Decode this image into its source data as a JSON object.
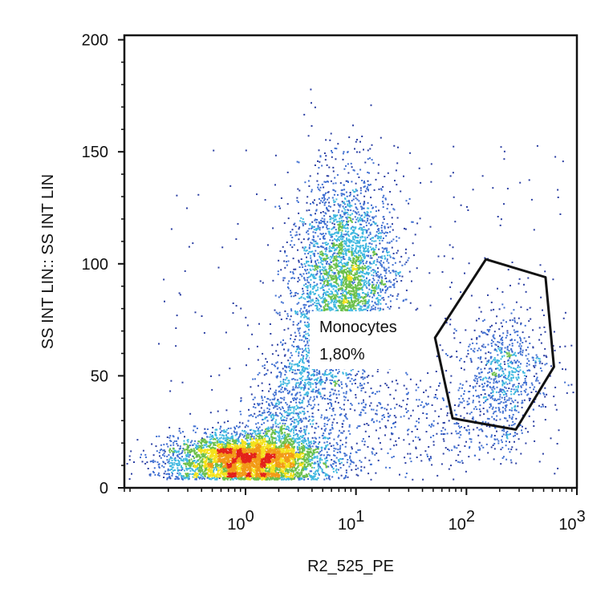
{
  "chart_data": {
    "type": "scatter",
    "title": "",
    "xlabel": "R2_525_PE",
    "ylabel": "SS INT LIN:: SS INT LIN",
    "x_scale": "log",
    "xlim": [
      0.08,
      1000
    ],
    "ylim": [
      0,
      202
    ],
    "x_ticks": [
      {
        "value": 1,
        "base": "10",
        "exp": "0"
      },
      {
        "value": 10,
        "base": "10",
        "exp": "1"
      },
      {
        "value": 100,
        "base": "10",
        "exp": "2"
      },
      {
        "value": 1000,
        "base": "10",
        "exp": "3"
      }
    ],
    "y_ticks": [
      {
        "value": 0,
        "label": "0"
      },
      {
        "value": 50,
        "label": "50"
      },
      {
        "value": 100,
        "label": "100"
      },
      {
        "value": 150,
        "label": "150"
      },
      {
        "value": 200,
        "label": "200"
      }
    ],
    "grid": false,
    "colormap": [
      "#2b3fa3",
      "#3f6fd1",
      "#3fb8e0",
      "#6cc04a",
      "#f4e21b",
      "#f29b17",
      "#e3221b"
    ],
    "populations": [
      {
        "center_x": 1.05,
        "center_y": 13,
        "spread_log10x": 0.35,
        "spread_y": 6,
        "count": 4500
      },
      {
        "center_x": 8.0,
        "center_y": 95,
        "spread_log10x": 0.23,
        "spread_y": 22,
        "count": 3200
      },
      {
        "center_x": 220,
        "center_y": 52,
        "spread_log10x": 0.2,
        "spread_y": 14,
        "count": 700
      }
    ],
    "gate": {
      "name": "Monocytes",
      "percent": "1,80%",
      "vertices": [
        [
          150,
          102
        ],
        [
          520,
          94
        ],
        [
          620,
          54
        ],
        [
          280,
          26
        ],
        [
          75,
          31
        ],
        [
          52,
          67
        ]
      ]
    }
  }
}
